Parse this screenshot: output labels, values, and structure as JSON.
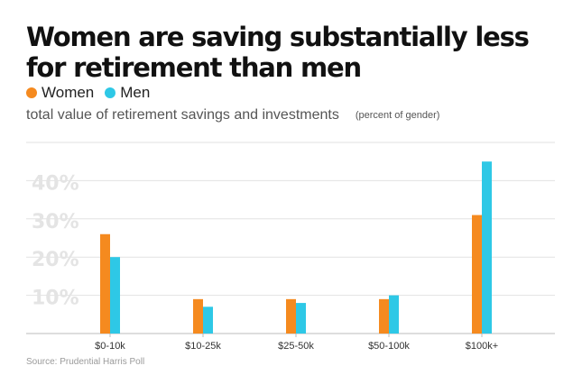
{
  "header": {
    "title": "Women are saving substantially less for retirement than men",
    "subtitle": "total value of retirement savings and investments",
    "unit_note": "(percent of gender)"
  },
  "source": "Source: Prudential Harris Poll",
  "colors": {
    "women": "#f58a1f",
    "men": "#2ec8e6",
    "grid": "#e2e2e2",
    "tick": "#d9d9d9"
  },
  "chart_data": {
    "type": "bar",
    "title": "Women are saving substantially less for retirement than men",
    "subtitle": "total value of retirement savings and investments",
    "xlabel": "",
    "ylabel": "",
    "ylim": [
      0,
      50
    ],
    "yticks": [
      10,
      20,
      30,
      40
    ],
    "ytick_labels": [
      "10%",
      "20%",
      "30%",
      "40%"
    ],
    "categories": [
      "$0-10k",
      "$10-25k",
      "$25-50k",
      "$50-100k",
      "$100k+"
    ],
    "series": [
      {
        "name": "Women",
        "values": [
          26,
          9,
          9,
          9,
          31
        ]
      },
      {
        "name": "Men",
        "values": [
          20,
          7,
          8,
          10,
          45
        ]
      }
    ],
    "grid": true,
    "legend": "top-left"
  }
}
